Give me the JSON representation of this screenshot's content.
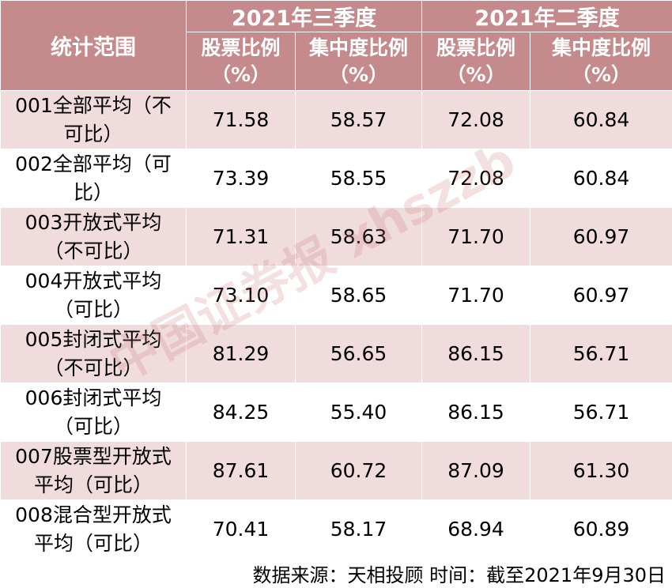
{
  "table": {
    "corner": "统计范围",
    "groups": [
      "2021年三季度",
      "2021年二季度"
    ],
    "columns": [
      {
        "name": "股票比例",
        "unit": "（%）"
      },
      {
        "name": "集中度比例",
        "unit": "（%）"
      },
      {
        "name": "股票比例",
        "unit": "（%）"
      },
      {
        "name": "集中度比例",
        "unit": "（%）"
      }
    ],
    "rows": [
      [
        "001全部平均（不可比）",
        "71.58",
        "58.57",
        "72.08",
        "60.84"
      ],
      [
        "002全部平均（可比）",
        "73.39",
        "58.55",
        "72.08",
        "60.84"
      ],
      [
        "003开放式平均（不可比）",
        "71.31",
        "58.63",
        "71.70",
        "60.97"
      ],
      [
        "004开放式平均（可比）",
        "73.10",
        "58.65",
        "71.70",
        "60.97"
      ],
      [
        "005封闭式平均（不可比）",
        "81.29",
        "56.65",
        "86.15",
        "56.71"
      ],
      [
        "006封闭式平均（可比）",
        "84.25",
        "55.40",
        "86.15",
        "56.71"
      ],
      [
        "007股票型开放式平均（可比）",
        "87.61",
        "60.72",
        "87.09",
        "61.30"
      ],
      [
        "008混合型开放式平均（可比）",
        "70.41",
        "58.17",
        "68.94",
        "60.89"
      ]
    ]
  },
  "watermark": "中国证券报 xhszzb",
  "footer": "数据来源：天相投顾 时间：截至2021年9月30日"
}
